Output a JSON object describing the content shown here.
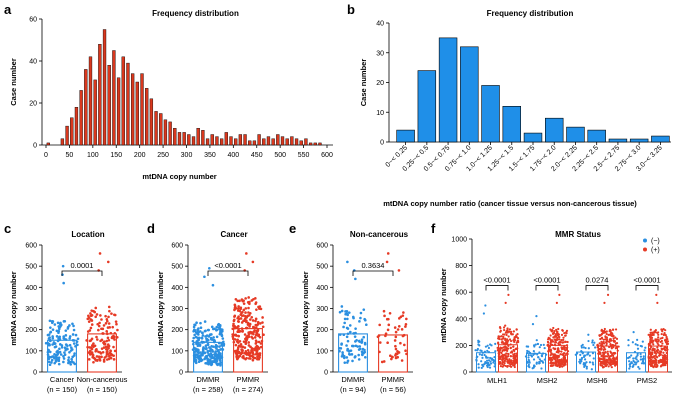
{
  "chart_data": [
    {
      "id": "a",
      "panel_label": "a",
      "type": "bar",
      "title": "Frequency distribution",
      "xlabel": "mtDNA copy number",
      "ylabel": "Case number",
      "xlim": [
        0,
        600
      ],
      "ylim": [
        0,
        60
      ],
      "xticks": [
        "0",
        "50",
        "100",
        "150",
        "200",
        "250",
        "300",
        "350",
        "400",
        "450",
        "500",
        "550",
        "600"
      ],
      "yticks": [
        "0",
        "20",
        "40",
        "60"
      ],
      "bin_width": 10,
      "x": [
        5,
        15,
        25,
        35,
        45,
        55,
        65,
        75,
        85,
        95,
        105,
        115,
        125,
        135,
        145,
        155,
        165,
        175,
        185,
        195,
        205,
        215,
        225,
        235,
        245,
        255,
        265,
        275,
        285,
        295,
        305,
        315,
        325,
        335,
        345,
        355,
        365,
        375,
        385,
        395,
        405,
        415,
        425,
        435,
        445,
        455,
        465,
        475,
        485,
        495,
        505,
        515,
        525,
        535,
        545,
        555,
        565,
        575,
        585,
        595
      ],
      "values": [
        1,
        0,
        0,
        3,
        9,
        13,
        18,
        26,
        36,
        42,
        31,
        48,
        55,
        38,
        45,
        32,
        42,
        39,
        34,
        30,
        34,
        27,
        22,
        16,
        15,
        12,
        11,
        8,
        6,
        6,
        5,
        4,
        8,
        7,
        3,
        5,
        4,
        3,
        6,
        4,
        3,
        5,
        5,
        2,
        2,
        5,
        3,
        4,
        3,
        5,
        4,
        3,
        4,
        3,
        2,
        3,
        1,
        1,
        1,
        0
      ],
      "color": "#d9381e"
    },
    {
      "id": "b",
      "panel_label": "b",
      "type": "bar",
      "title": "Frequency distribution",
      "xlabel": "mtDNA copy number ratio (cancer tissue versus non-cancerous tissue)",
      "ylabel": "Case number",
      "ylim": [
        0,
        40
      ],
      "yticks": [
        "0",
        "10",
        "20",
        "30",
        "40"
      ],
      "categories": [
        "0~< 0.25",
        "0.25~< 0.5",
        "0.5~< 0.75",
        "0.75~< 1.0",
        "1.0~< 1.25",
        "1.25~< 1.5",
        "1.5~< 1.75",
        "1.75~< 2.0",
        "2.0~< 2.25",
        "2.25~< 2.5",
        "2.5~< 2.75",
        "2.75~< 3.0",
        "3.0~< 3.25"
      ],
      "values": [
        4,
        24,
        35,
        32,
        19,
        12,
        3,
        8,
        5,
        4,
        1,
        1,
        2
      ],
      "color": "#1f8fe8"
    },
    {
      "id": "c",
      "panel_label": "c",
      "type": "scatter",
      "title": "Location",
      "ylabel": "mtDNA copy number",
      "ylim": [
        0,
        600
      ],
      "yticks": [
        "0",
        "100",
        "200",
        "300",
        "400",
        "500",
        "600"
      ],
      "groups": [
        {
          "name": "Cancer",
          "n_label": "(n = 150)",
          "n": 150,
          "mean": 150,
          "color": "#2b8fe0",
          "max": 500
        },
        {
          "name": "Non-cancerous",
          "n_label": "(n = 150)",
          "n": 150,
          "mean": 180,
          "color": "#e63a25",
          "max": 560
        }
      ],
      "comparisons": [
        {
          "between": [
            0,
            1
          ],
          "p": "0.0001"
        }
      ]
    },
    {
      "id": "d",
      "panel_label": "d",
      "type": "scatter",
      "title": "Cancer",
      "ylabel": "mtDNA copy number",
      "ylim": [
        0,
        600
      ],
      "yticks": [
        "0",
        "100",
        "200",
        "300",
        "400",
        "500",
        "600"
      ],
      "groups": [
        {
          "name": "DMMR",
          "n_label": "(n = 258)",
          "n": 258,
          "mean": 140,
          "color": "#2b8fe0",
          "max": 490
        },
        {
          "name": "PMMR",
          "n_label": "(n = 274)",
          "n": 274,
          "mean": 205,
          "color": "#e63a25",
          "max": 560
        }
      ],
      "comparisons": [
        {
          "between": [
            0,
            1
          ],
          "p": "<0.0001"
        }
      ]
    },
    {
      "id": "e",
      "panel_label": "e",
      "type": "scatter",
      "title": "Non-cancerous",
      "ylabel": "mtDNA copy number",
      "ylim": [
        0,
        600
      ],
      "yticks": [
        "0",
        "100",
        "200",
        "300",
        "400",
        "500",
        "600"
      ],
      "groups": [
        {
          "name": "DMMR",
          "n_label": "(n = 94)",
          "n": 94,
          "mean": 180,
          "color": "#2b8fe0",
          "max": 520
        },
        {
          "name": "PMMR",
          "n_label": "(n = 56)",
          "n": 56,
          "mean": 175,
          "color": "#e63a25",
          "max": 560
        }
      ],
      "comparisons": [
        {
          "between": [
            0,
            1
          ],
          "p": "0.3634"
        }
      ]
    },
    {
      "id": "f",
      "panel_label": "f",
      "type": "scatter",
      "title": "MMR Status",
      "ylabel": "mtDNA copy number",
      "ylim": [
        0,
        1000
      ],
      "yticks": [
        "0",
        "200",
        "400",
        "600",
        "800",
        "1000"
      ],
      "legend": [
        {
          "label": "(−)",
          "color": "#2b8fe0"
        },
        {
          "label": "(+)",
          "color": "#e63a25"
        }
      ],
      "categories": [
        "MLH1",
        "MSH2",
        "MSH6",
        "PMS2"
      ],
      "series": [
        {
          "name": "(−)",
          "color": "#2b8fe0",
          "means": [
            145,
            140,
            150,
            145
          ],
          "n": [
            70,
            60,
            50,
            55
          ],
          "max": [
            500,
            420,
            280,
            300
          ]
        },
        {
          "name": "(+)",
          "color": "#e63a25",
          "means": [
            205,
            200,
            195,
            195
          ],
          "n": [
            240,
            240,
            250,
            245
          ],
          "max": [
            580,
            580,
            580,
            580
          ]
        }
      ],
      "pvalues": [
        "<0.0001",
        "<0.0001",
        "0.0274",
        "<0.0001"
      ]
    }
  ]
}
